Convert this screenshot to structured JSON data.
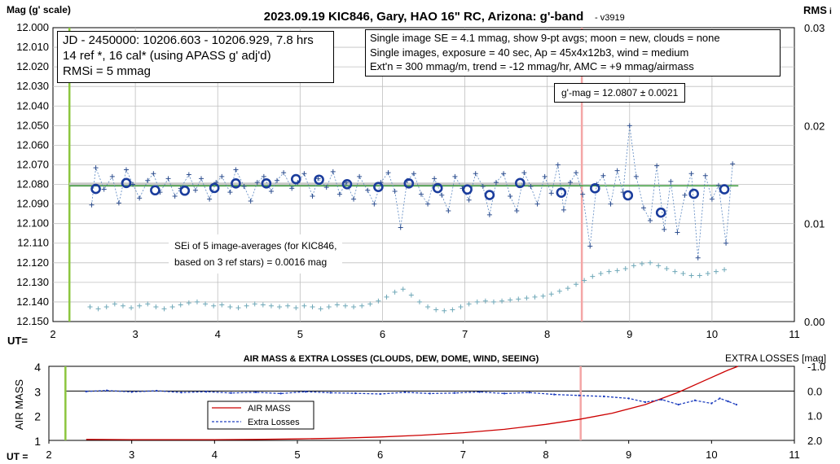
{
  "chart_data": [
    {
      "type": "scatter",
      "title": "2023.09.19 KIC846, Gary, HAO 16\" RC, Arizona: g'-band",
      "version": "- v3919",
      "ylabel": "Mag (g' scale)",
      "y2label": "RMS",
      "y2label_suffix": "i",
      "xlabel": "UT=",
      "xlim": [
        2,
        11
      ],
      "ylim": [
        12.0,
        12.15
      ],
      "y_reversed": true,
      "y2lim": [
        0.0,
        0.03
      ],
      "x_ticks": [
        "2",
        "3",
        "4",
        "5",
        "6",
        "7",
        "8",
        "9",
        "10",
        "11"
      ],
      "y_ticks": [
        "12.000",
        "12.010",
        "12.020",
        "12.030",
        "12.040",
        "12.050",
        "12.060",
        "12.070",
        "12.080",
        "12.090",
        "12.100",
        "12.110",
        "12.120",
        "12.130",
        "12.140",
        "12.150"
      ],
      "y2_ticks": [
        "0.03",
        "0.02",
        "0.01",
        "0.00"
      ],
      "grid": true,
      "info_box_1": [
        "JD - 2450000: 10206.603 - 10206.929, 7.8 hrs",
        "14 ref *, 16 cal* (using APASS g' adj'd)",
        "RMSi = 5 mmag"
      ],
      "info_box_2": [
        "Single image SE = 4.1 mmag, show  9-pt avgs; moon = new, clouds = none",
        "Single images, exposure = 40 sec, Ap = 45x4x12b3, wind = medium",
        "Ext'n = 300 mmag/m, trend = -12 mmag/hr, AMC = +9 mmag/airmass"
      ],
      "mag_label": "g'-mag = 12.0807 ± 0.0021",
      "sei_label": [
        "SEi of 5 image-averages (for KIC846,",
        "based on 3 ref stars) = 0.0016 mag"
      ],
      "vertical_markers": [
        {
          "x": 2.2,
          "color": "#8cc63f"
        },
        {
          "x": 8.42,
          "color": "#f4a6a6"
        }
      ],
      "mean_mag": 12.0807,
      "series": [
        {
          "name": "9-pt averages",
          "x": [
            2.52,
            2.89,
            3.24,
            3.6,
            3.96,
            4.22,
            4.59,
            4.95,
            5.23,
            5.57,
            5.95,
            6.32,
            6.67,
            7.03,
            7.3,
            7.67,
            8.17,
            8.58,
            8.98,
            9.38,
            9.78,
            10.15
          ],
          "y": [
            12.0823,
            12.0793,
            12.083,
            12.0832,
            12.0818,
            12.0795,
            12.0795,
            12.0773,
            12.0776,
            12.0799,
            12.0813,
            12.0795,
            12.0819,
            12.0826,
            12.0854,
            12.0793,
            12.0842,
            12.082,
            12.0856,
            12.0944,
            12.0848,
            12.0825
          ]
        },
        {
          "name": "Single images",
          "x": [
            2.47,
            2.52,
            2.62,
            2.72,
            2.8,
            2.89,
            2.97,
            3.05,
            3.15,
            3.22,
            3.3,
            3.4,
            3.48,
            3.55,
            3.65,
            3.73,
            3.8,
            3.9,
            3.98,
            4.05,
            4.15,
            4.22,
            4.32,
            4.4,
            4.48,
            4.56,
            4.65,
            4.72,
            4.8,
            4.9,
            4.97,
            5.05,
            5.15,
            5.22,
            5.32,
            5.4,
            5.48,
            5.56,
            5.65,
            5.72,
            5.82,
            5.9,
            5.98,
            6.07,
            6.15,
            6.22,
            6.3,
            6.38,
            6.47,
            6.55,
            6.63,
            6.72,
            6.8,
            6.88,
            6.97,
            7.05,
            7.13,
            7.22,
            7.3,
            7.38,
            7.47,
            7.55,
            7.63,
            7.72,
            7.8,
            7.88,
            7.97,
            8.05,
            8.13,
            8.2,
            8.28,
            8.35,
            8.43,
            8.52,
            8.6,
            8.68,
            8.77,
            8.85,
            8.92,
            9.0,
            9.08,
            9.17,
            9.25,
            9.33,
            9.42,
            9.5,
            9.58,
            9.67,
            9.75,
            9.83,
            9.92,
            10.0,
            10.08,
            10.17,
            10.25
          ],
          "y": [
            12.0905,
            12.0715,
            12.0825,
            12.076,
            12.0895,
            12.0725,
            12.08,
            12.087,
            12.078,
            12.0745,
            12.084,
            12.077,
            12.086,
            12.082,
            12.075,
            12.083,
            12.077,
            12.0875,
            12.079,
            12.076,
            12.084,
            12.0725,
            12.081,
            12.0885,
            12.079,
            12.076,
            12.0835,
            12.078,
            12.074,
            12.082,
            12.079,
            12.0745,
            12.086,
            12.077,
            12.0815,
            12.0735,
            12.085,
            12.079,
            12.0875,
            12.076,
            12.083,
            12.09,
            12.079,
            12.074,
            12.0835,
            12.102,
            12.078,
            12.0745,
            12.085,
            12.09,
            12.077,
            12.0855,
            12.0935,
            12.076,
            12.082,
            12.088,
            12.0745,
            12.081,
            12.0955,
            12.079,
            12.0745,
            12.086,
            12.0935,
            12.074,
            12.081,
            12.09,
            12.076,
            12.0845,
            12.07,
            12.093,
            12.079,
            12.074,
            12.085,
            12.1115,
            12.08,
            12.0755,
            12.09,
            12.073,
            12.084,
            12.05,
            12.076,
            12.092,
            12.0985,
            12.0705,
            12.103,
            12.0785,
            12.1045,
            12.0855,
            12.0745,
            12.1175,
            12.0755,
            12.0875,
            12.0805,
            12.11,
            12.0695
          ]
        },
        {
          "name": "RMSi",
          "axis": "y2",
          "x": [
            2.45,
            2.55,
            2.65,
            2.75,
            2.85,
            2.95,
            3.05,
            3.15,
            3.25,
            3.35,
            3.45,
            3.55,
            3.65,
            3.75,
            3.85,
            3.95,
            4.05,
            4.15,
            4.25,
            4.35,
            4.45,
            4.55,
            4.65,
            4.75,
            4.85,
            4.95,
            5.05,
            5.15,
            5.25,
            5.35,
            5.45,
            5.55,
            5.65,
            5.75,
            5.85,
            5.95,
            6.05,
            6.15,
            6.25,
            6.35,
            6.45,
            6.55,
            6.65,
            6.75,
            6.85,
            6.95,
            7.05,
            7.15,
            7.25,
            7.35,
            7.45,
            7.55,
            7.65,
            7.75,
            7.85,
            7.95,
            8.05,
            8.15,
            8.25,
            8.35,
            8.45,
            8.55,
            8.65,
            8.75,
            8.85,
            8.95,
            9.05,
            9.15,
            9.25,
            9.35,
            9.45,
            9.55,
            9.65,
            9.75,
            9.85,
            9.95,
            10.05,
            10.15
          ],
          "y": [
            0.0015,
            0.0013,
            0.0015,
            0.0018,
            0.0016,
            0.0014,
            0.0016,
            0.0018,
            0.0015,
            0.0013,
            0.0015,
            0.0017,
            0.0019,
            0.002,
            0.0018,
            0.0016,
            0.0017,
            0.0015,
            0.0014,
            0.0016,
            0.0018,
            0.0017,
            0.0016,
            0.0015,
            0.0016,
            0.0014,
            0.0016,
            0.0015,
            0.0013,
            0.0015,
            0.0017,
            0.0016,
            0.0015,
            0.0016,
            0.0018,
            0.0021,
            0.0025,
            0.003,
            0.0033,
            0.0027,
            0.002,
            0.0015,
            0.0012,
            0.0011,
            0.0012,
            0.0015,
            0.0018,
            0.002,
            0.0021,
            0.002,
            0.0021,
            0.0022,
            0.0023,
            0.0024,
            0.0025,
            0.0026,
            0.0028,
            0.0031,
            0.0034,
            0.0038,
            0.0042,
            0.0046,
            0.0049,
            0.0051,
            0.0052,
            0.0054,
            0.0057,
            0.0059,
            0.006,
            0.0057,
            0.0054,
            0.0051,
            0.0049,
            0.0047,
            0.0047,
            0.0049,
            0.0051,
            0.0053
          ]
        }
      ]
    },
    {
      "type": "line",
      "title": "AIR MASS & EXTRA LOSSES (CLOUDS, DEW, DOME, WIND, SEEING)",
      "ylabel": "AIR MASS",
      "y2label": "EXTRA LOSSES [mag]",
      "xlabel": "UT =",
      "xlim": [
        2,
        11
      ],
      "ylim": [
        1,
        4
      ],
      "y2lim": [
        -1.0,
        2.0
      ],
      "y2_reversed": true,
      "x_ticks": [
        "2",
        "3",
        "4",
        "5",
        "6",
        "7",
        "8",
        "9",
        "10",
        "11"
      ],
      "y_ticks": [
        "1",
        "2",
        "3",
        "4"
      ],
      "y2_ticks": [
        "-1.0",
        "0.0",
        "1.0",
        "2.0"
      ],
      "legend": [
        "AIR MASS",
        "Extra Losses"
      ],
      "legend_position": "lower-middle",
      "vertical_markers": [
        {
          "x": 2.2,
          "color": "#8cc63f"
        },
        {
          "x": 8.42,
          "color": "#f4a6a6"
        }
      ],
      "series": [
        {
          "name": "AIR MASS",
          "color": "#cc0000",
          "x": [
            2.45,
            3.0,
            3.5,
            4.0,
            4.5,
            5.0,
            5.5,
            6.0,
            6.5,
            7.0,
            7.5,
            8.0,
            8.4,
            8.8,
            9.2,
            9.6,
            9.9,
            10.2,
            10.32
          ],
          "y": [
            1.04,
            1.03,
            1.03,
            1.03,
            1.04,
            1.06,
            1.09,
            1.14,
            1.21,
            1.31,
            1.45,
            1.65,
            1.85,
            2.1,
            2.45,
            2.95,
            3.4,
            3.85,
            4.0
          ]
        },
        {
          "name": "Extra Losses",
          "color": "#1f3fbf",
          "x": [
            2.45,
            2.7,
            3.0,
            3.3,
            3.6,
            3.9,
            4.2,
            4.5,
            4.8,
            5.1,
            5.4,
            5.7,
            6.0,
            6.3,
            6.6,
            6.9,
            7.2,
            7.5,
            7.8,
            8.1,
            8.4,
            8.7,
            9.0,
            9.2,
            9.4,
            9.6,
            9.8,
            10.0,
            10.1,
            10.2,
            10.3
          ],
          "y": [
            0.02,
            -0.02,
            0.04,
            -0.01,
            0.06,
            0.03,
            0.08,
            0.05,
            0.1,
            0.03,
            0.07,
            0.09,
            0.12,
            0.05,
            0.1,
            0.08,
            0.04,
            0.1,
            0.06,
            0.14,
            0.18,
            0.22,
            0.3,
            0.45,
            0.35,
            0.55,
            0.38,
            0.5,
            0.3,
            0.42,
            0.55
          ]
        }
      ]
    }
  ]
}
